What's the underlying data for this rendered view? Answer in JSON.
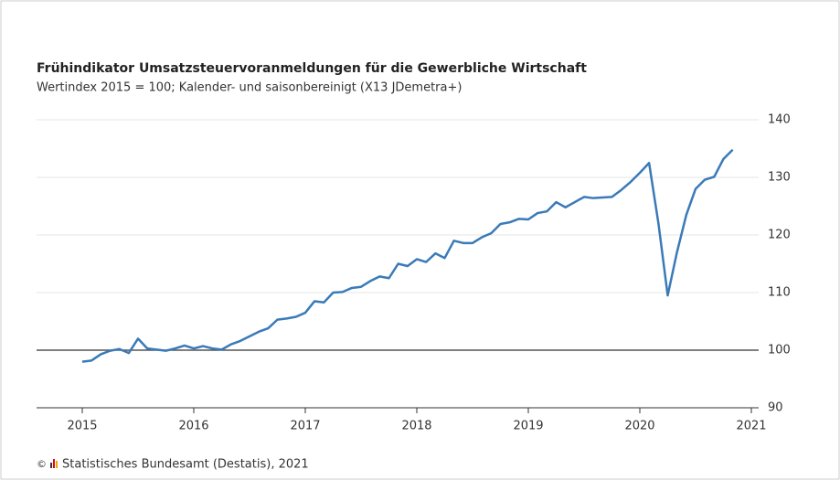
{
  "chart_data": {
    "type": "line",
    "title": "Frühindikator Umsatzsteuervoranmeldungen für die Gewerbliche Wirtschaft",
    "subtitle": "Wertindex 2015 = 100; Kalender- und saisonbereinigt (X13 JDemetra+)",
    "source": "Statistisches Bundesamt (Destatis), 2021",
    "x": [
      2015,
      2015.083,
      2015.167,
      2015.25,
      2015.333,
      2015.417,
      2015.5,
      2015.583,
      2015.667,
      2015.75,
      2015.833,
      2015.917,
      2016,
      2016.083,
      2016.167,
      2016.25,
      2016.333,
      2016.417,
      2016.5,
      2016.583,
      2016.667,
      2016.75,
      2016.833,
      2016.917,
      2017,
      2017.083,
      2017.167,
      2017.25,
      2017.333,
      2017.417,
      2017.5,
      2017.583,
      2017.667,
      2017.75,
      2017.833,
      2017.917,
      2018,
      2018.083,
      2018.167,
      2018.25,
      2018.333,
      2018.417,
      2018.5,
      2018.583,
      2018.667,
      2018.75,
      2018.833,
      2018.917,
      2019,
      2019.083,
      2019.167,
      2019.25,
      2019.333,
      2019.417,
      2019.5,
      2019.583,
      2019.667,
      2019.75,
      2019.833,
      2019.917,
      2020,
      2020.083,
      2020.167,
      2020.25,
      2020.333,
      2020.417,
      2020.5,
      2020.583,
      2020.667,
      2020.75,
      2020.833
    ],
    "series": [
      {
        "name": "Wertindex",
        "color": "#3a7ab8",
        "values": [
          98.0,
          98.2,
          99.3,
          99.9,
          100.2,
          99.5,
          102.0,
          100.3,
          100.1,
          99.9,
          100.3,
          100.8,
          100.3,
          100.7,
          100.3,
          100.1,
          101.0,
          101.6,
          102.4,
          103.2,
          103.8,
          105.3,
          105.5,
          105.8,
          106.5,
          108.5,
          108.3,
          110.0,
          110.1,
          110.8,
          111.0,
          112.0,
          112.8,
          112.5,
          115.0,
          114.6,
          115.8,
          115.3,
          116.8,
          116.0,
          119.0,
          118.6,
          118.6,
          119.6,
          120.3,
          121.9,
          122.2,
          122.8,
          122.7,
          123.8,
          124.1,
          125.7,
          124.8,
          125.7,
          126.6,
          126.4,
          126.5,
          126.6,
          127.8,
          129.2,
          130.8,
          132.5,
          122.0,
          109.5,
          117.0,
          123.5,
          128.0,
          129.6,
          130.1,
          133.2,
          134.8
        ]
      }
    ],
    "xlim": [
      2015,
      2021
    ],
    "xticks": [
      2015,
      2016,
      2017,
      2018,
      2019,
      2020,
      2021
    ],
    "ylim": [
      90,
      140
    ],
    "yticks": [
      90,
      100,
      110,
      120,
      130,
      140
    ],
    "reference_line": 100,
    "grid": true
  }
}
